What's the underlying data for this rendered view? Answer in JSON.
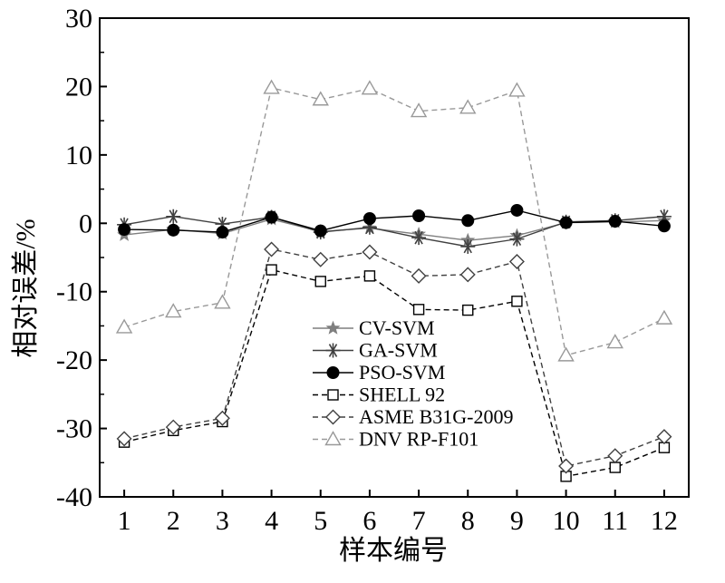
{
  "chart_data": {
    "type": "line",
    "xlabel": "样本编号",
    "ylabel": "相对误差/%",
    "x": [
      1,
      2,
      3,
      4,
      5,
      6,
      7,
      8,
      9,
      10,
      11,
      12
    ],
    "xlim": [
      0.5,
      12.5
    ],
    "ylim": [
      -40,
      30
    ],
    "xticks": [
      "1",
      "2",
      "3",
      "4",
      "5",
      "6",
      "7",
      "8",
      "9",
      "10",
      "11",
      "12"
    ],
    "yticks": [
      "-40",
      "-30",
      "-20",
      "-10",
      "0",
      "10",
      "20",
      "30"
    ],
    "grid": false,
    "legend_position": "center-bottom",
    "series": [
      {
        "name": "CV-SVM",
        "marker": "star",
        "line": "solid",
        "color": "#7f7f7f",
        "values": [
          -1.7,
          -0.9,
          -1.5,
          0.6,
          -1.2,
          -0.7,
          -1.6,
          -2.5,
          -1.8,
          0.1,
          0.2,
          0.4
        ]
      },
      {
        "name": "GA-SVM",
        "marker": "asterisk",
        "line": "solid",
        "color": "#404040",
        "values": [
          -0.2,
          1.0,
          -0.1,
          0.9,
          -1.3,
          -0.6,
          -2.1,
          -3.4,
          -2.3,
          0.2,
          0.4,
          1.0
        ]
      },
      {
        "name": "PSO-SVM",
        "marker": "filled-circle",
        "line": "solid",
        "color": "#000000",
        "values": [
          -0.9,
          -1.0,
          -1.3,
          0.9,
          -1.1,
          0.7,
          1.1,
          0.4,
          1.9,
          0.1,
          0.3,
          -0.4
        ]
      },
      {
        "name": "SHELL 92",
        "marker": "square",
        "line": "dashed",
        "color": "#000000",
        "values": [
          -32.0,
          -30.3,
          -29.0,
          -6.8,
          -8.5,
          -7.7,
          -12.6,
          -12.7,
          -11.4,
          -37.0,
          -35.7,
          -32.8
        ]
      },
      {
        "name": "ASME B31G-2009",
        "marker": "diamond",
        "line": "dashed",
        "color": "#404040",
        "values": [
          -31.5,
          -29.8,
          -28.5,
          -3.8,
          -5.3,
          -4.2,
          -7.7,
          -7.5,
          -5.6,
          -35.5,
          -34.0,
          -31.2
        ]
      },
      {
        "name": "DNV RP-F101",
        "marker": "triangle",
        "line": "dashed",
        "color": "#999999",
        "values": [
          -15.2,
          -12.9,
          -11.6,
          19.8,
          18.1,
          19.7,
          16.4,
          16.9,
          19.4,
          -19.3,
          -17.4,
          -13.9
        ]
      }
    ]
  }
}
